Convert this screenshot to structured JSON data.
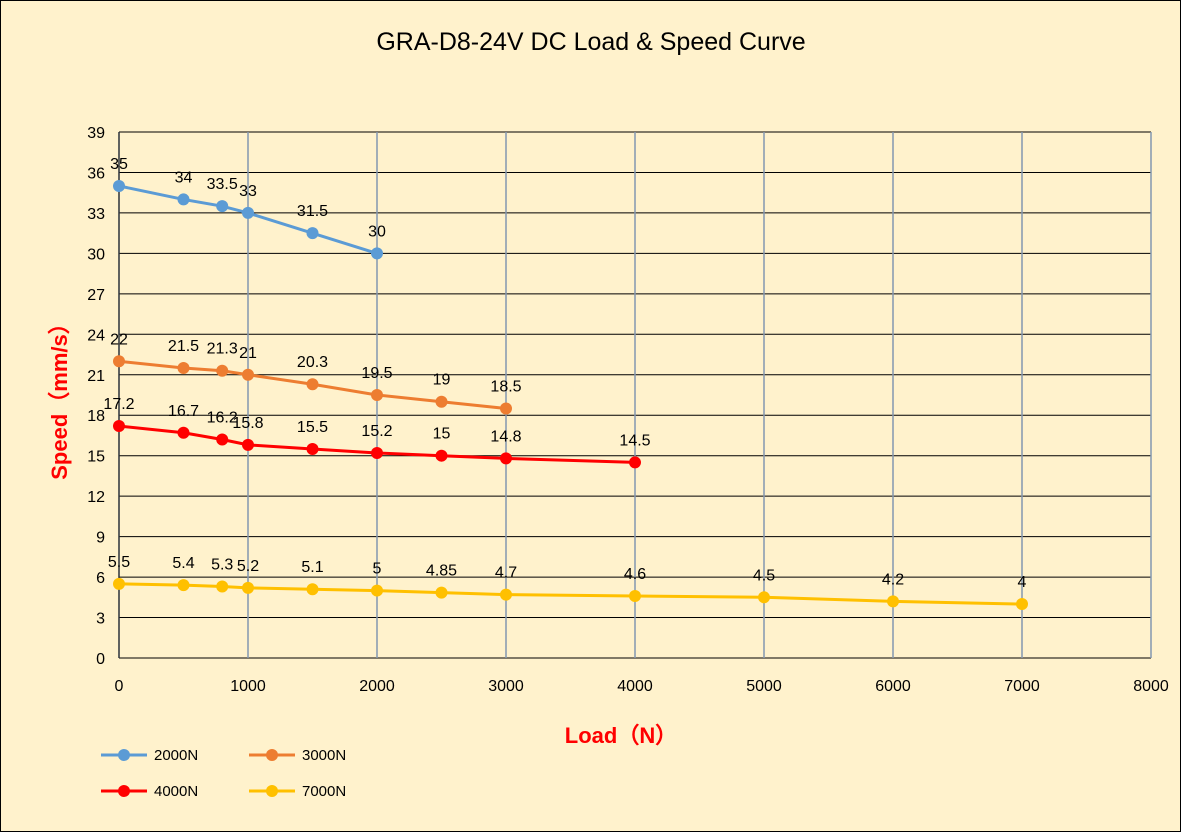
{
  "chart_data": {
    "type": "line",
    "title": "GRA-D8-24V DC Load & Speed Curve",
    "xlabel": "Load（N）",
    "ylabel": "Speed（mm/s）",
    "label_color": "#ff0000",
    "background_color": "#fff2cc",
    "xlim": [
      0,
      8000
    ],
    "ylim": [
      0,
      39
    ],
    "x_ticks": [
      0,
      1000,
      2000,
      3000,
      4000,
      5000,
      6000,
      7000,
      8000
    ],
    "y_ticks": [
      0,
      3,
      6,
      9,
      12,
      15,
      18,
      21,
      24,
      27,
      30,
      33,
      36,
      39
    ],
    "grid": true,
    "legend_position": "bottom-left",
    "series": [
      {
        "name": "2000N",
        "color": "#5b9bd5",
        "x": [
          0,
          500,
          800,
          1000,
          1500,
          2000
        ],
        "y": [
          35,
          34,
          33.5,
          33,
          31.5,
          30
        ],
        "labels": [
          "35",
          "34",
          "33.5",
          "33",
          "31.5",
          "30"
        ]
      },
      {
        "name": "3000N",
        "color": "#ed7d31",
        "x": [
          0,
          500,
          800,
          1000,
          1500,
          2000,
          2500,
          3000
        ],
        "y": [
          22,
          21.5,
          21.3,
          21,
          20.3,
          19.5,
          19,
          18.5
        ],
        "labels": [
          "22",
          "21.5",
          "21.3",
          "21",
          "20.3",
          "19.5",
          "19",
          "18.5"
        ]
      },
      {
        "name": "4000N",
        "color": "#ff0000",
        "x": [
          0,
          500,
          800,
          1000,
          1500,
          2000,
          2500,
          3000,
          4000
        ],
        "y": [
          17.2,
          16.7,
          16.2,
          15.8,
          15.5,
          15.2,
          15,
          14.8,
          14.5
        ],
        "labels": [
          "17.2",
          "16.7",
          "16.2",
          "15.8",
          "15.5",
          "15.2",
          "15",
          "14.8",
          "14.5"
        ]
      },
      {
        "name": "7000N",
        "color": "#ffc000",
        "x": [
          0,
          500,
          800,
          1000,
          1500,
          2000,
          2500,
          3000,
          4000,
          5000,
          6000,
          7000
        ],
        "y": [
          5.5,
          5.4,
          5.3,
          5.2,
          5.1,
          5,
          4.85,
          4.7,
          4.6,
          4.5,
          4.2,
          4
        ],
        "labels": [
          "5.5",
          "5.4",
          "5.3",
          "5.2",
          "5.1",
          "5",
          "4.85",
          "4.7",
          "4.6",
          "4.5",
          "4.2",
          "4"
        ]
      }
    ]
  }
}
